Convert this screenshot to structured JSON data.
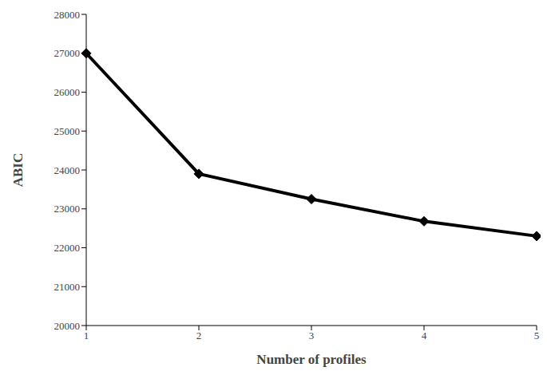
{
  "chart_data": {
    "type": "line",
    "x_label": "Number of profiles",
    "y_label": "ABIC",
    "categories": [
      "1",
      "2",
      "3",
      "4",
      "5"
    ],
    "values": [
      27000,
      23900,
      23250,
      22680,
      22300
    ],
    "color": "#000000",
    "marker": "diamond",
    "line_style": "solid",
    "ylim": [
      20000,
      28000
    ],
    "yticks": [
      20000,
      21000,
      22000,
      23000,
      24000,
      25000,
      26000,
      27000,
      28000
    ],
    "grid": false
  }
}
